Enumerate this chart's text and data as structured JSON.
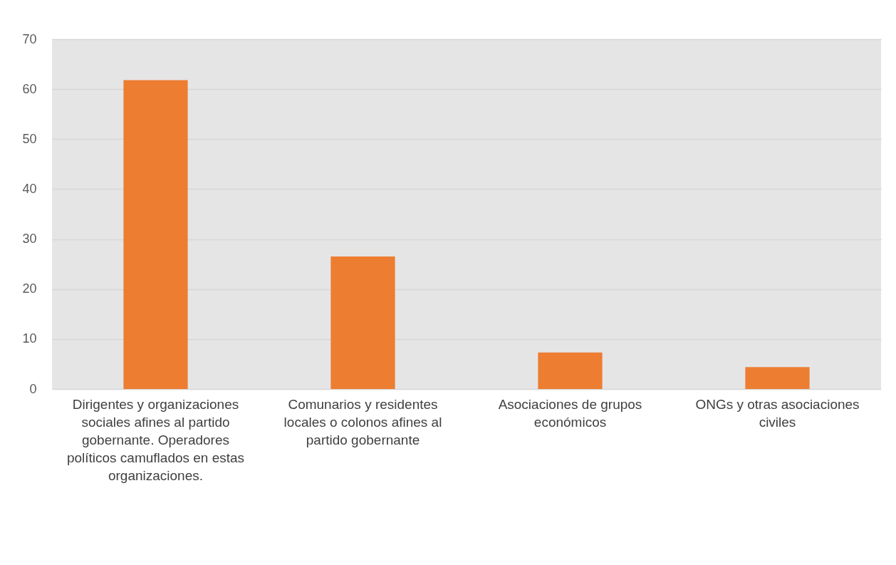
{
  "chart_data": {
    "type": "bar",
    "categories": [
      "Dirigentes y organizaciones sociales afines al partido gobernante. Operadores políticos camuflados en estas organizaciones.",
      "Comunarios y residentes locales o colonos afines al partido gobernante",
      "Asociaciones de grupos económicos",
      "ONGs y otras asociaciones civiles"
    ],
    "values": [
      61.8,
      26.5,
      7.3,
      4.4
    ],
    "color": "#ed7d31",
    "ylim": [
      0,
      70
    ],
    "yticks": [
      0,
      10,
      20,
      30,
      40,
      50,
      60,
      70
    ],
    "grid": "y"
  }
}
